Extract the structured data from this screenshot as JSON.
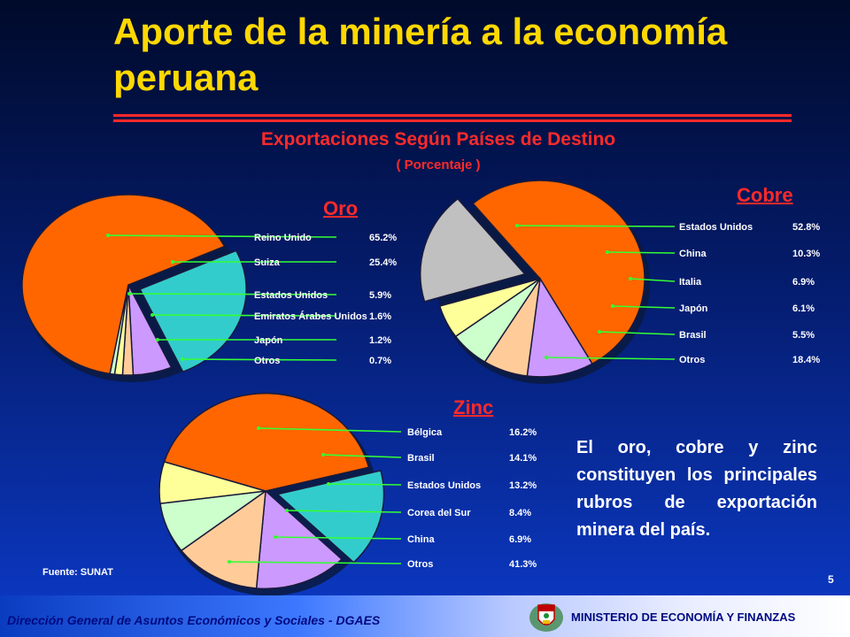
{
  "title": "Aporte de la minería a la economía peruana",
  "subtitle": "Exportaciones Según Países de Destino",
  "subtitle_unit": "( Porcentaje )",
  "summary": "El oro, cobre y zinc constituyen los principales rubros de exportación minera del país.",
  "source": "Fuente: SUNAT",
  "page_number": "5",
  "footer": {
    "left": "Dirección General de Asuntos Económicos y Sociales - DGAES",
    "right": "MINISTERIO DE ECONOMÍA Y FINANZAS",
    "crest_icon": "coat-of-arms-icon"
  },
  "chart_data": [
    {
      "type": "pie",
      "title": "Oro",
      "categories": [
        "Reino Unido",
        "Suiza",
        "Estados Unidos",
        "Emiratos Árabes Unidos",
        "Japón",
        "Otros"
      ],
      "values": [
        65.2,
        25.4,
        5.9,
        1.6,
        1.2,
        0.7
      ],
      "labels": [
        "65.2%",
        "25.4%",
        "5.9%",
        "1.6%",
        "1.2%",
        "0.7%"
      ],
      "colors": [
        "#ff6600",
        "#33cccc",
        "#cc99ff",
        "#ffcc99",
        "#ffff99",
        "#ccffcc"
      ]
    },
    {
      "type": "pie",
      "title": "Cobre",
      "categories": [
        "Estados Unidos",
        "China",
        "Italia",
        "Japón",
        "Brasil",
        "Otros"
      ],
      "values": [
        52.8,
        10.3,
        6.9,
        6.1,
        5.5,
        18.4
      ],
      "labels": [
        "52.8%",
        "10.3%",
        "6.9%",
        "6.1%",
        "5.5%",
        "18.4%"
      ],
      "colors": [
        "#ff6600",
        "#cc99ff",
        "#ffcc99",
        "#ccffcc",
        "#ffff99",
        "#c0c0c0"
      ]
    },
    {
      "type": "pie",
      "title": "Zinc",
      "categories": [
        "Bélgica",
        "Brasil",
        "Estados Unidos",
        "Corea del Sur",
        "China",
        "Otros"
      ],
      "values": [
        16.2,
        14.1,
        13.2,
        8.4,
        6.9,
        41.3
      ],
      "labels": [
        "16.2%",
        "14.1%",
        "13.2%",
        "8.4%",
        "6.9%",
        "41.3%"
      ],
      "colors": [
        "#33cccc",
        "#cc99ff",
        "#ffcc99",
        "#ccffcc",
        "#ffff99",
        "#ff6600"
      ]
    }
  ]
}
